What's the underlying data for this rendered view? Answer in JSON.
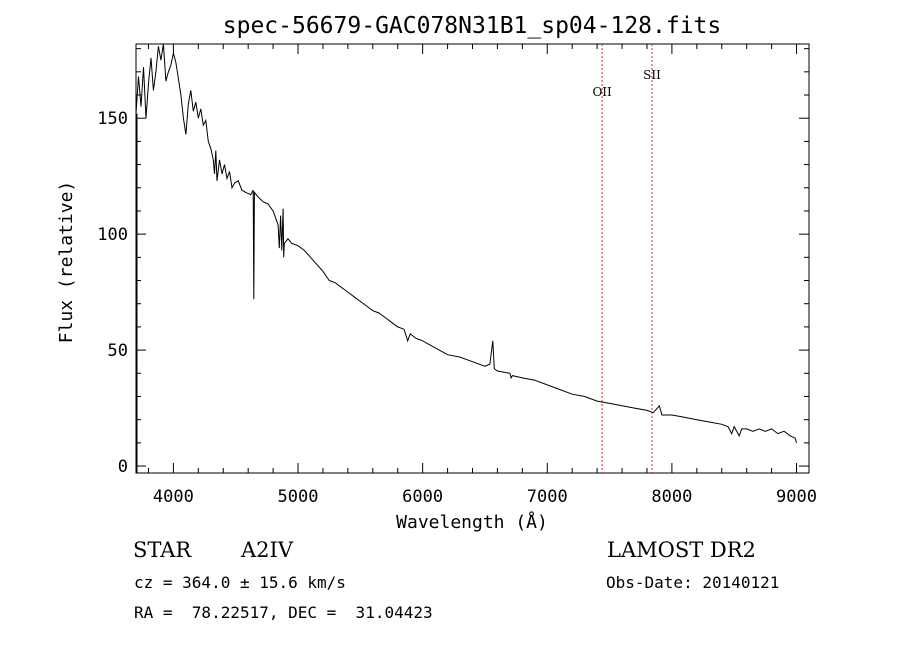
{
  "chart_data": {
    "type": "line",
    "title": "spec-56679-GAC078N31B1_sp04-128.fits",
    "xlabel": "Wavelength (Å)",
    "ylabel": "Flux (relative)",
    "xlim": [
      3700,
      9100
    ],
    "ylim": [
      -3,
      182
    ],
    "xticks": [
      4000,
      5000,
      6000,
      7000,
      8000,
      9000
    ],
    "yticks": [
      0,
      50,
      100,
      150
    ],
    "grid": false,
    "color": "#000000",
    "line_color": "#cc2222",
    "points": [
      [
        3700,
        152
      ],
      [
        3720,
        168
      ],
      [
        3740,
        155
      ],
      [
        3760,
        172
      ],
      [
        3780,
        150
      ],
      [
        3800,
        165
      ],
      [
        3820,
        176
      ],
      [
        3840,
        162
      ],
      [
        3860,
        170
      ],
      [
        3880,
        181
      ],
      [
        3900,
        175
      ],
      [
        3920,
        182
      ],
      [
        3940,
        166
      ],
      [
        3960,
        170
      ],
      [
        3980,
        173
      ],
      [
        4000,
        178
      ],
      [
        4020,
        174
      ],
      [
        4040,
        167
      ],
      [
        4060,
        160
      ],
      [
        4080,
        150
      ],
      [
        4100,
        143
      ],
      [
        4120,
        156
      ],
      [
        4140,
        162
      ],
      [
        4160,
        153
      ],
      [
        4180,
        157
      ],
      [
        4200,
        150
      ],
      [
        4220,
        154
      ],
      [
        4240,
        147
      ],
      [
        4260,
        149
      ],
      [
        4280,
        140
      ],
      [
        4300,
        137
      ],
      [
        4320,
        132
      ],
      [
        4330,
        126
      ],
      [
        4340,
        136
      ],
      [
        4350,
        123
      ],
      [
        4370,
        132
      ],
      [
        4390,
        126
      ],
      [
        4410,
        130
      ],
      [
        4430,
        124
      ],
      [
        4450,
        127
      ],
      [
        4470,
        120
      ],
      [
        4490,
        122
      ],
      [
        4520,
        123
      ],
      [
        4550,
        119
      ],
      [
        4580,
        118
      ],
      [
        4620,
        117
      ],
      [
        4640,
        119
      ],
      [
        4645,
        72
      ],
      [
        4650,
        118
      ],
      [
        4680,
        116
      ],
      [
        4720,
        114
      ],
      [
        4760,
        113
      ],
      [
        4800,
        110
      ],
      [
        4840,
        104
      ],
      [
        4850,
        94
      ],
      [
        4860,
        108
      ],
      [
        4870,
        93
      ],
      [
        4880,
        111
      ],
      [
        4885,
        90
      ],
      [
        4890,
        96
      ],
      [
        4920,
        98
      ],
      [
        4950,
        96
      ],
      [
        5000,
        95
      ],
      [
        5050,
        93
      ],
      [
        5100,
        90
      ],
      [
        5150,
        87
      ],
      [
        5200,
        84
      ],
      [
        5250,
        80
      ],
      [
        5300,
        79
      ],
      [
        5350,
        77
      ],
      [
        5400,
        75
      ],
      [
        5450,
        73
      ],
      [
        5500,
        71
      ],
      [
        5550,
        69
      ],
      [
        5600,
        67
      ],
      [
        5650,
        66
      ],
      [
        5700,
        64
      ],
      [
        5750,
        62
      ],
      [
        5800,
        60
      ],
      [
        5850,
        59
      ],
      [
        5880,
        54
      ],
      [
        5900,
        57
      ],
      [
        5950,
        55
      ],
      [
        6000,
        54
      ],
      [
        6100,
        51
      ],
      [
        6200,
        48
      ],
      [
        6300,
        47
      ],
      [
        6400,
        45
      ],
      [
        6500,
        43
      ],
      [
        6540,
        44
      ],
      [
        6563,
        54
      ],
      [
        6575,
        42
      ],
      [
        6600,
        41
      ],
      [
        6700,
        40
      ],
      [
        6710,
        38
      ],
      [
        6720,
        39
      ],
      [
        6800,
        38
      ],
      [
        6900,
        37
      ],
      [
        7000,
        35
      ],
      [
        7100,
        33
      ],
      [
        7200,
        31
      ],
      [
        7300,
        30
      ],
      [
        7400,
        28
      ],
      [
        7500,
        27
      ],
      [
        7600,
        26
      ],
      [
        7700,
        25
      ],
      [
        7800,
        24
      ],
      [
        7850,
        23
      ],
      [
        7900,
        26
      ],
      [
        7920,
        22
      ],
      [
        8000,
        22
      ],
      [
        8100,
        21
      ],
      [
        8200,
        20
      ],
      [
        8300,
        19
      ],
      [
        8400,
        18
      ],
      [
        8450,
        17
      ],
      [
        8480,
        14
      ],
      [
        8500,
        17
      ],
      [
        8540,
        13
      ],
      [
        8560,
        16
      ],
      [
        8600,
        16
      ],
      [
        8650,
        15
      ],
      [
        8700,
        16
      ],
      [
        8750,
        15
      ],
      [
        8800,
        16
      ],
      [
        8850,
        14
      ],
      [
        8900,
        15
      ],
      [
        8950,
        13
      ],
      [
        8990,
        12
      ],
      [
        9000,
        10
      ]
    ],
    "line_markers": [
      {
        "label": "OII",
        "x": 7440
      },
      {
        "label": "SII",
        "x": 7840
      }
    ]
  },
  "info": {
    "object_class": "STAR",
    "subclass": "A2IV",
    "survey": "LAMOST DR2",
    "cz": "cz = 364.0 ± 15.6 km/s",
    "obs_date": "Obs-Date: 20140121",
    "coords": "RA =  78.22517, DEC =  31.04423"
  }
}
